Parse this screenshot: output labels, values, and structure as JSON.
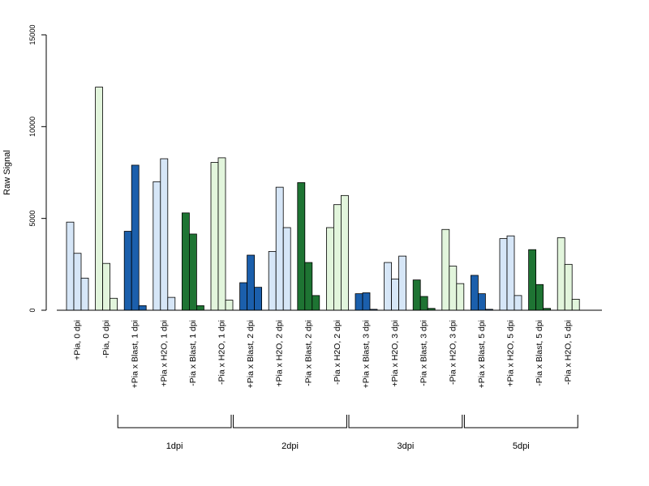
{
  "chart_data": {
    "type": "bar",
    "ylabel": "Raw Signal",
    "ylim": [
      0,
      15000
    ],
    "yticks": [
      0,
      5000,
      10000,
      15000
    ],
    "yticklabels": [
      "0",
      "5000",
      "10000",
      "15000"
    ],
    "grid": false,
    "legend": "none",
    "categories": [
      "+Pia, 0 dpi",
      "-Pia, 0 dpi",
      "+Pia x Blast, 1 dpi",
      "+Pia x H2O, 1 dpi",
      "-Pia x Blast, 1 dpi",
      "-Pia x H2O, 1 dpi",
      "+Pia x Blast, 2 dpi",
      "+Pia x H2O, 2 dpi",
      "-Pia x Blast, 2 dpi",
      "-Pia x H2O, 2 dpi",
      "+Pia x Blast, 3 dpi",
      "+Pia x H2O, 3 dpi",
      "-Pia x Blast, 3 dpi",
      "-Pia x H2O, 3 dpi",
      "+Pia x Blast, 5 dpi",
      "+Pia x H2O, 5 dpi",
      "-Pia x Blast, 5 dpi",
      "-Pia x H2O, 5 dpi"
    ],
    "category_colors": [
      "#d6e6f7",
      "#e2f5dc",
      "#1b5fac",
      "#d6e6f7",
      "#1e7433",
      "#e2f5dc",
      "#1b5fac",
      "#d6e6f7",
      "#1e7433",
      "#e2f5dc",
      "#1b5fac",
      "#d6e6f7",
      "#1e7433",
      "#e2f5dc",
      "#1b5fac",
      "#d6e6f7",
      "#1e7433",
      "#e2f5dc"
    ],
    "series": [
      {
        "values": [
          4800,
          12150,
          4300,
          7000,
          5300,
          8050,
          1500,
          3200,
          6950,
          4500,
          900,
          2600,
          1650,
          4400,
          1900,
          3900,
          3300,
          3950
        ]
      },
      {
        "values": [
          3100,
          2550,
          7900,
          8250,
          4150,
          8300,
          3000,
          6700,
          2600,
          5750,
          950,
          1700,
          750,
          2400,
          900,
          4050,
          1400,
          2500
        ]
      },
      {
        "values": [
          1750,
          650,
          250,
          700,
          250,
          550,
          1250,
          4500,
          800,
          6250,
          50,
          2950,
          100,
          1450,
          50,
          800,
          100,
          600
        ]
      }
    ],
    "groups": [
      {
        "label": "1dpi",
        "start": 2,
        "end": 5
      },
      {
        "label": "2dpi",
        "start": 6,
        "end": 9
      },
      {
        "label": "3dpi",
        "start": 10,
        "end": 13
      },
      {
        "label": "5dpi",
        "start": 14,
        "end": 17
      }
    ]
  }
}
